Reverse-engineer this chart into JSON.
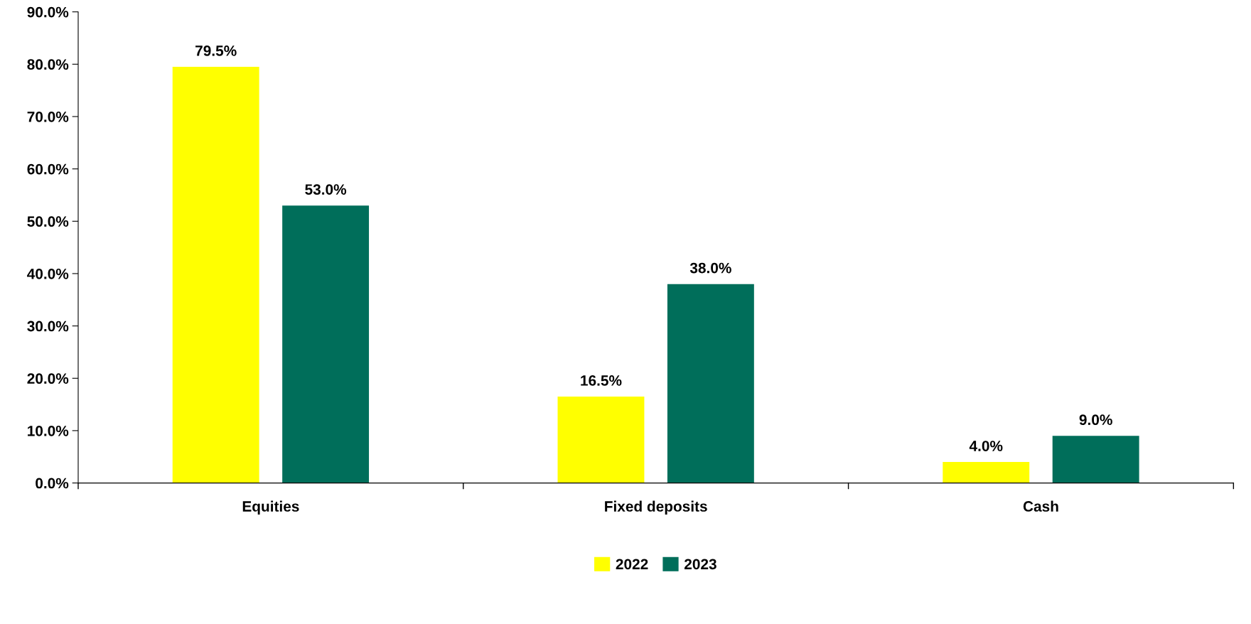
{
  "chart_data": {
    "type": "bar",
    "categories": [
      "Equities",
      "Fixed deposits",
      "Cash"
    ],
    "series": [
      {
        "name": "2022",
        "color": "#ffff00",
        "values": [
          79.5,
          16.5,
          4.0
        ],
        "value_labels": [
          "79.5%",
          "16.5%",
          "4.0%"
        ]
      },
      {
        "name": "2023",
        "color": "#006e5a",
        "values": [
          53.0,
          38.0,
          9.0
        ],
        "value_labels": [
          "53.0%",
          "38.0%",
          "9.0%"
        ]
      }
    ],
    "ylim": [
      0,
      90
    ],
    "yticks": [
      {
        "value": 0,
        "label": "0.0%"
      },
      {
        "value": 10,
        "label": "10.0%"
      },
      {
        "value": 20,
        "label": "20.0%"
      },
      {
        "value": 30,
        "label": "30.0%"
      },
      {
        "value": 40,
        "label": "40.0%"
      },
      {
        "value": 50,
        "label": "50.0%"
      },
      {
        "value": 60,
        "label": "60.0%"
      },
      {
        "value": 70,
        "label": "70.0%"
      },
      {
        "value": 80,
        "label": "80.0%"
      },
      {
        "value": 90,
        "label": "90.0%"
      }
    ],
    "grid": false,
    "legend": "bottom"
  }
}
